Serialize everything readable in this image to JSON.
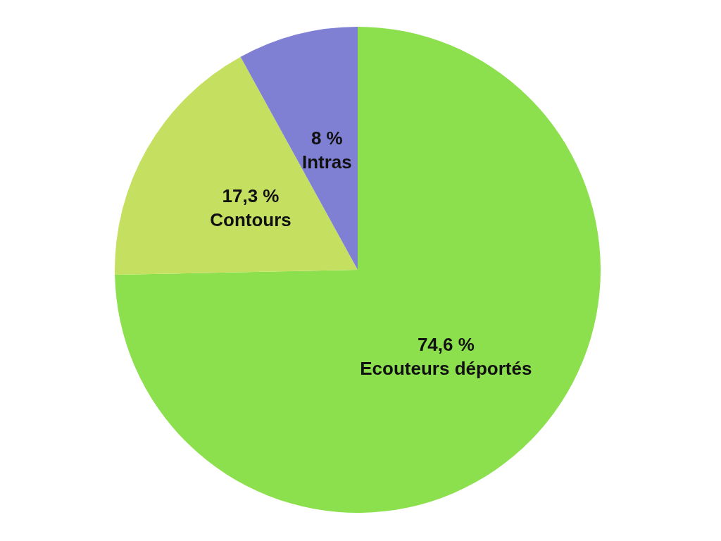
{
  "chart_data": {
    "type": "pie",
    "categories": [
      "Ecouteurs déportés",
      "Contours",
      "Intras"
    ],
    "values": [
      74.6,
      17.3,
      8
    ],
    "value_labels": [
      "74,6 %",
      "17,3 %",
      "8 %"
    ],
    "colors": [
      "#8ce04e",
      "#c5e060",
      "#7f80d4"
    ]
  }
}
